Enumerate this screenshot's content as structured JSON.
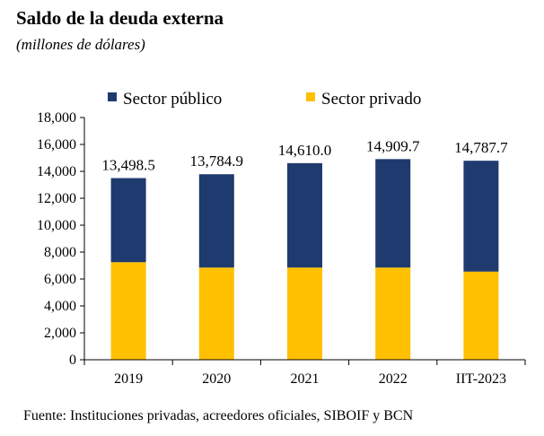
{
  "title": "Saldo de la deuda externa",
  "subtitle": "(millones de dólares)",
  "source": "Fuente: Instituciones privadas, acreedores oficiales, SIBOIF y BCN",
  "chart_data": {
    "type": "bar",
    "stacked": true,
    "categories": [
      "2019",
      "2020",
      "2021",
      "2022",
      "IIT-2023"
    ],
    "series": [
      {
        "name": "Sector privado",
        "color": "#FFC000",
        "values": [
          7250,
          6850,
          6850,
          6850,
          6550
        ]
      },
      {
        "name": "Sector público",
        "color": "#1F3A6E",
        "values": [
          6248.5,
          6934.9,
          7760.0,
          8059.7,
          8237.7
        ]
      }
    ],
    "totals": [
      13498.5,
      13784.9,
      14610.0,
      14909.7,
      14787.7
    ],
    "total_labels": [
      "13,498.5",
      "13,784.9",
      "14,610.0",
      "14,909.7",
      "14,787.7"
    ],
    "yticks": [
      "0",
      "2,000",
      "4,000",
      "6,000",
      "8,000",
      "10,000",
      "12,000",
      "14,000",
      "16,000",
      "18,000"
    ],
    "ylim": [
      0,
      18000
    ],
    "legend_position": "top"
  }
}
